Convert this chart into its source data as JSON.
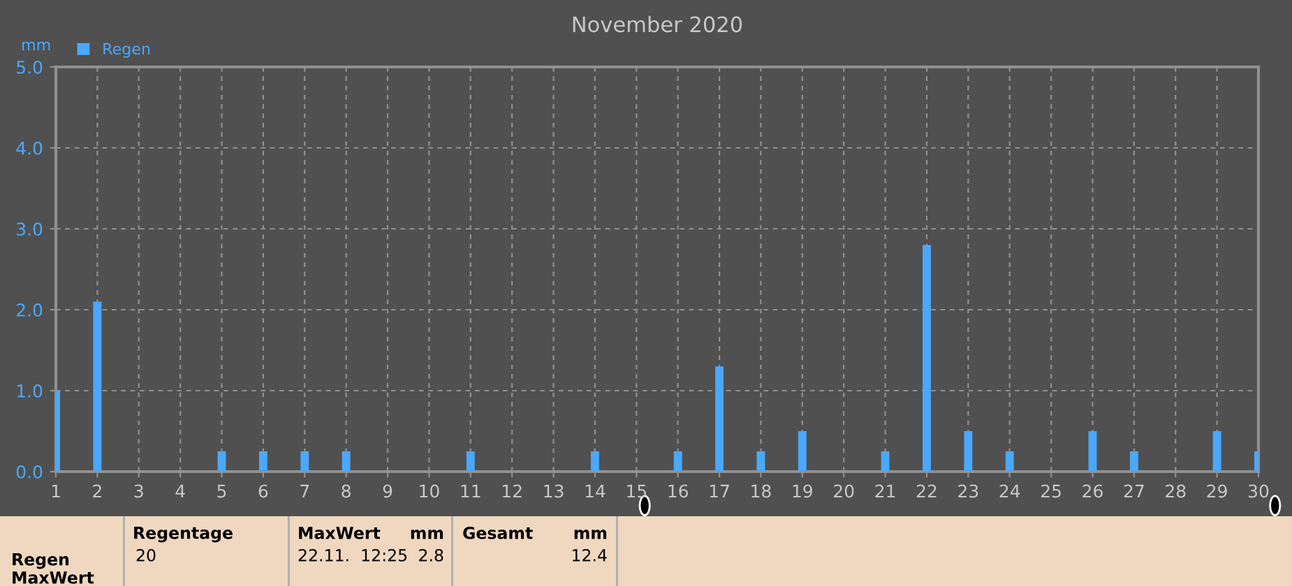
{
  "chart_data": {
    "type": "bar",
    "title": "November 2020",
    "ylabel": "mm",
    "x": [
      1,
      2,
      5,
      6,
      7,
      8,
      11,
      14,
      16,
      17,
      18,
      19,
      21,
      22,
      23,
      24,
      26,
      27,
      29,
      30
    ],
    "series": [
      {
        "name": "Regen",
        "color": "#4aa8ff",
        "values": [
          1.0,
          2.1,
          0.25,
          0.25,
          0.25,
          0.25,
          0.25,
          0.25,
          0.25,
          1.3,
          0.25,
          0.5,
          0.25,
          2.8,
          0.5,
          0.25,
          0.5,
          0.25,
          0.5,
          0.25
        ]
      }
    ],
    "xlim": [
      1,
      30
    ],
    "xticks": [
      1,
      2,
      3,
      4,
      5,
      6,
      7,
      8,
      9,
      10,
      11,
      12,
      13,
      14,
      15,
      16,
      17,
      18,
      19,
      20,
      21,
      22,
      23,
      24,
      25,
      26,
      27,
      28,
      29,
      30
    ],
    "ylim": [
      0,
      5.0
    ],
    "yticks": [
      {
        "value": 0,
        "label": "0.0"
      },
      {
        "value": 1,
        "label": "1.0"
      },
      {
        "value": 2,
        "label": "2.0"
      },
      {
        "value": 3,
        "label": "3.0"
      },
      {
        "value": 4,
        "label": "4.0"
      },
      {
        "value": 5,
        "label": "5.0"
      }
    ],
    "grid": true,
    "legend": "top left",
    "annotations": [
      "Regen",
      "MaxWert",
      "Regentage",
      "20",
      "MaxWert",
      "mm",
      "22.11.  12:25",
      "2.8",
      "Gesamt",
      "mm",
      "12.4"
    ]
  }
}
